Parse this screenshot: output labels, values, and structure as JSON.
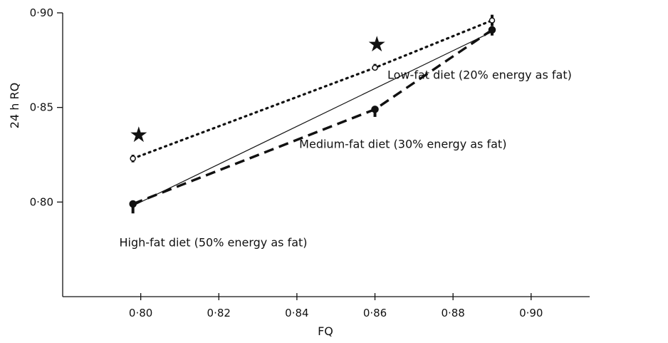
{
  "chart_data": {
    "type": "line",
    "xlabel": "FQ",
    "ylabel": "24 h RQ",
    "xlim": [
      0.78,
      0.915
    ],
    "ylim": [
      0.75,
      0.9
    ],
    "x_ticks": [
      0.8,
      0.82,
      0.84,
      0.86,
      0.88,
      0.9
    ],
    "x_tick_labels": [
      "0·80",
      "0·82",
      "0·84",
      "0·86",
      "0·88",
      "0·90"
    ],
    "y_ticks": [
      0.8,
      0.85,
      0.9
    ],
    "y_tick_labels": [
      "0·80",
      "0·85",
      "0·90"
    ],
    "grid": false,
    "series": [
      {
        "key": "low",
        "style": "dotted",
        "marker": "open-circle",
        "x": [
          0.798,
          0.86,
          0.89
        ],
        "y": [
          0.823,
          0.871,
          0.896
        ],
        "err_low": [
          0.821,
          0.87,
          0.893
        ],
        "err_high": [
          0.825,
          0.873,
          0.899
        ]
      },
      {
        "key": "medium",
        "style": "dashed",
        "marker": "filled-circle",
        "x": [
          0.798,
          0.86,
          0.89
        ],
        "y": [
          0.799,
          0.849,
          0.891
        ],
        "err_low": [
          0.794,
          0.845,
          0.888
        ],
        "err_high": [
          0.799,
          0.849,
          0.891
        ]
      },
      {
        "key": "identity",
        "style": "solid",
        "marker": "none",
        "x": [
          0.798,
          0.89
        ],
        "y": [
          0.798,
          0.89
        ]
      }
    ],
    "significance_markers": [
      {
        "symbol": "★",
        "x": 0.7995,
        "y": 0.8355
      },
      {
        "symbol": "★",
        "x": 0.8605,
        "y": 0.8835
      }
    ],
    "annotations": [
      {
        "key": "low",
        "text": "Low-fat diet (20% energy as fat)",
        "x": 0.8632,
        "y": 0.8652
      },
      {
        "key": "medium",
        "text": "Medium-fat diet (30% energy as fat)",
        "x": 0.8406,
        "y": 0.8285
      },
      {
        "key": "high",
        "text": "High-fat diet (50% energy as fat)",
        "x": 0.7945,
        "y": 0.7766
      }
    ]
  }
}
